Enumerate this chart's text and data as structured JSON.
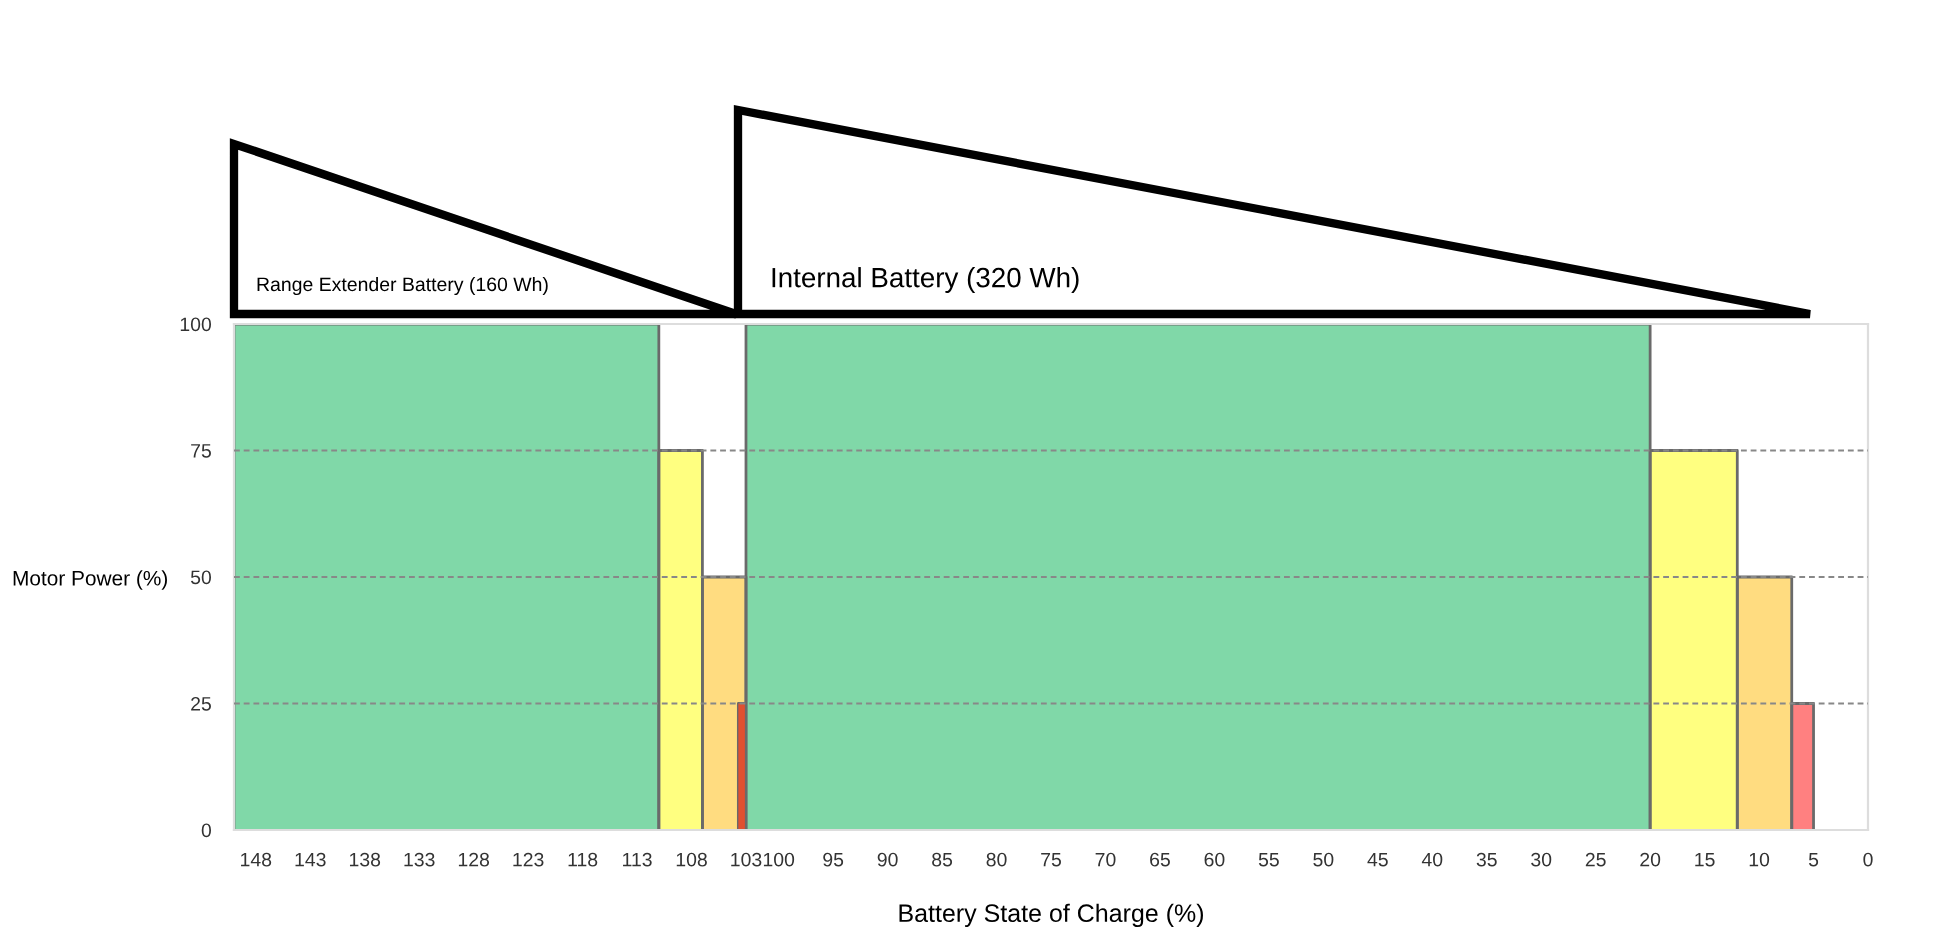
{
  "chart_data": {
    "type": "area",
    "xlabel": "Battery State of Charge (%)",
    "ylabel": "Motor Power (%)",
    "annotations": [
      "Range Extender Battery (160 Wh)",
      "Internal Battery (320 Wh)"
    ],
    "series": [
      {
        "color": "#80d8a8",
        "x": [
          150,
          111
        ],
        "values": [
          100,
          100
        ]
      },
      {
        "color": "#ffff80",
        "x": [
          111,
          107
        ],
        "values": [
          75,
          75
        ]
      },
      {
        "color": "#ffdc80",
        "x": [
          107,
          103
        ],
        "values": [
          50,
          50
        ]
      },
      {
        "color": "#e05030",
        "x": [
          103.7,
          103.1
        ],
        "values": [
          25,
          25
        ]
      },
      {
        "color": "#80d8a8",
        "x": [
          103,
          20
        ],
        "values": [
          100,
          100
        ]
      },
      {
        "color": "#ffff80",
        "x": [
          20,
          12
        ],
        "values": [
          75,
          75
        ]
      },
      {
        "color": "#ffdc80",
        "x": [
          12,
          7
        ],
        "values": [
          50,
          50
        ]
      },
      {
        "color": "#ff8080",
        "x": [
          7,
          5
        ],
        "values": [
          25,
          25
        ]
      }
    ],
    "xlim": [
      150,
      0
    ],
    "xticks": [
      148,
      143,
      138,
      133,
      128,
      123,
      118,
      113,
      108,
      103,
      100,
      95,
      90,
      85,
      80,
      75,
      70,
      65,
      60,
      55,
      50,
      45,
      40,
      35,
      30,
      25,
      20,
      15,
      10,
      5,
      0
    ],
    "ylim": [
      0,
      100
    ],
    "yticks": [
      0,
      25,
      50,
      75,
      100
    ],
    "grid": "y",
    "legend": false
  }
}
